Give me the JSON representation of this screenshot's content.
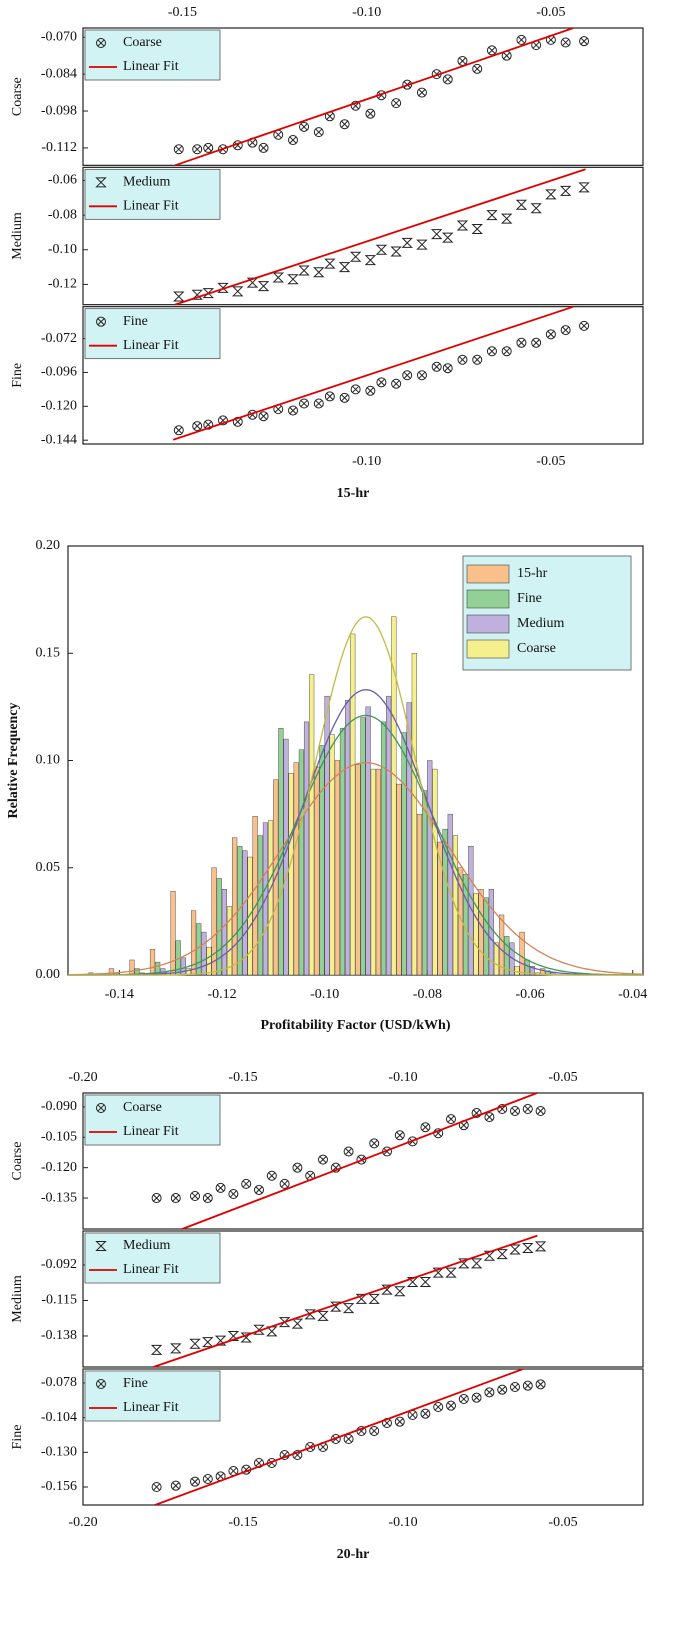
{
  "chart_data": [
    {
      "type": "scatter",
      "xlabel": "15-hr",
      "xlim": [
        -0.177,
        -0.025
      ],
      "xticks_top": [
        -0.15,
        {
          "value": -0.1,
          "label": "-0.10"
        },
        -0.05
      ],
      "xticks_bottom": [
        {
          "value": -0.1,
          "label": "-0.10"
        },
        -0.05
      ],
      "panels": [
        {
          "ylabel": "Coarse",
          "ylim": [
            -0.1186,
            -0.0665
          ],
          "yticks": [
            {
              "value": -0.07,
              "label": "-0.070"
            },
            -0.084,
            -0.098,
            -0.112
          ],
          "series": [
            {
              "name": "Coarse",
              "marker": "circle-x",
              "color": "#222222",
              "x": [
                -0.151,
                -0.146,
                -0.143,
                -0.139,
                -0.135,
                -0.131,
                -0.128,
                -0.124,
                -0.12,
                -0.117,
                -0.113,
                -0.11,
                -0.106,
                -0.103,
                -0.099,
                -0.096,
                -0.092,
                -0.089,
                -0.085,
                -0.081,
                -0.078,
                -0.074,
                -0.07,
                -0.066,
                -0.062,
                -0.058,
                -0.054,
                -0.05,
                -0.046,
                -0.041
              ],
              "values": [
                -0.1125,
                -0.1125,
                -0.112,
                -0.1125,
                -0.111,
                -0.11,
                -0.112,
                -0.107,
                -0.109,
                -0.104,
                -0.106,
                -0.1,
                -0.103,
                -0.096,
                -0.099,
                -0.092,
                -0.095,
                -0.088,
                -0.091,
                -0.084,
                -0.086,
                -0.079,
                -0.082,
                -0.075,
                -0.077,
                -0.071,
                -0.073,
                -0.071,
                -0.072,
                -0.0715
              ]
            },
            {
              "name": "Linear Fit",
              "color": "#e00000",
              "x": [
                -0.152,
                -0.0439
              ],
              "values": [
                -0.1186,
                -0.0665
              ]
            }
          ]
        },
        {
          "ylabel": "Medium",
          "ylim": [
            -0.1317,
            -0.0524
          ],
          "yticks": [
            -0.06,
            -0.08,
            {
              "value": -0.1,
              "label": "-0.10"
            },
            -0.12
          ],
          "series": [
            {
              "name": "Medium",
              "marker": "bowtie",
              "color": "#222222",
              "x": [
                -0.151,
                -0.146,
                -0.143,
                -0.139,
                -0.135,
                -0.131,
                -0.128,
                -0.124,
                -0.12,
                -0.117,
                -0.113,
                -0.11,
                -0.106,
                -0.103,
                -0.099,
                -0.096,
                -0.092,
                -0.089,
                -0.085,
                -0.081,
                -0.078,
                -0.074,
                -0.07,
                -0.066,
                -0.062,
                -0.058,
                -0.054,
                -0.05,
                -0.046,
                -0.041
              ],
              "values": [
                -0.127,
                -0.126,
                -0.125,
                -0.122,
                -0.124,
                -0.119,
                -0.121,
                -0.116,
                -0.117,
                -0.112,
                -0.113,
                -0.108,
                -0.11,
                -0.104,
                -0.106,
                -0.1,
                -0.101,
                -0.096,
                -0.097,
                -0.091,
                -0.093,
                -0.086,
                -0.088,
                -0.08,
                -0.082,
                -0.074,
                -0.076,
                -0.068,
                -0.066,
                -0.064
              ]
            },
            {
              "name": "Linear Fit",
              "color": "#e00000",
              "x": [
                -0.152,
                -0.0406
              ],
              "values": [
                -0.1317,
                -0.0535
              ]
            }
          ]
        },
        {
          "ylabel": "Fine",
          "ylim": [
            -0.1467,
            -0.0494
          ],
          "yticks": [
            -0.072,
            -0.096,
            {
              "value": -0.12,
              "label": "-0.120"
            },
            -0.144
          ],
          "series": [
            {
              "name": "Fine",
              "marker": "circle-x",
              "color": "#222222",
              "x": [
                -0.151,
                -0.146,
                -0.143,
                -0.139,
                -0.135,
                -0.131,
                -0.128,
                -0.124,
                -0.12,
                -0.117,
                -0.113,
                -0.11,
                -0.106,
                -0.103,
                -0.099,
                -0.096,
                -0.092,
                -0.089,
                -0.085,
                -0.081,
                -0.078,
                -0.074,
                -0.07,
                -0.066,
                -0.062,
                -0.058,
                -0.054,
                -0.05,
                -0.046,
                -0.041
              ],
              "values": [
                -0.137,
                -0.134,
                -0.133,
                -0.13,
                -0.131,
                -0.126,
                -0.127,
                -0.122,
                -0.123,
                -0.118,
                -0.118,
                -0.113,
                -0.114,
                -0.108,
                -0.109,
                -0.103,
                -0.104,
                -0.098,
                -0.098,
                -0.092,
                -0.093,
                -0.087,
                -0.087,
                -0.081,
                -0.081,
                -0.075,
                -0.075,
                -0.069,
                -0.066,
                -0.063
              ]
            },
            {
              "name": "Linear Fit",
              "color": "#e00000",
              "x": [
                -0.1525,
                -0.0439
              ],
              "values": [
                -0.1437,
                -0.0494
              ]
            }
          ]
        }
      ]
    },
    {
      "type": "histogram",
      "xlabel": "Profitability Factor (USD/kWh)",
      "ylabel": "Relative Frequency",
      "xlim": [
        -0.15,
        -0.038
      ],
      "ylim": [
        0,
        0.2
      ],
      "xticks": [
        -0.14,
        -0.12,
        {
          "value": -0.1,
          "label": "-0.10"
        },
        -0.08,
        -0.06,
        -0.04
      ],
      "yticks": [
        {
          "value": 0,
          "label": "0.00"
        },
        0.05,
        {
          "value": 0.1,
          "label": "0.10"
        },
        0.15,
        {
          "value": 0.2,
          "label": "0.20"
        }
      ],
      "legend": "top-right",
      "bins": [
        -0.146,
        -0.142,
        -0.138,
        -0.134,
        -0.13,
        -0.126,
        -0.122,
        -0.118,
        -0.114,
        -0.11,
        -0.106,
        -0.102,
        -0.098,
        -0.094,
        -0.09,
        -0.086,
        -0.082,
        -0.078,
        -0.074,
        -0.07,
        -0.066,
        -0.062,
        -0.058,
        -0.054
      ],
      "series": [
        {
          "name": "15-hr",
          "color": "#f9c08c",
          "fit_color": "#d4835a",
          "fit": {
            "peak": 0.099,
            "mean": -0.092,
            "sd": 0.0161
          },
          "values": [
            0.001,
            0.003,
            0.007,
            0.012,
            0.039,
            0.03,
            0.05,
            0.064,
            0.074,
            0.091,
            0.099,
            0.097,
            0.1,
            0.098,
            0.096,
            0.089,
            0.075,
            0.062,
            0.05,
            0.04,
            0.028,
            0.02,
            0.003
          ]
        },
        {
          "name": "Fine",
          "color": "#92d095",
          "fit_color": "#3f9558",
          "fit": {
            "peak": 0.121,
            "mean": -0.092,
            "sd": 0.0132
          },
          "values": [
            0,
            0.001,
            0.003,
            0.006,
            0.016,
            0.024,
            0.045,
            0.06,
            0.065,
            0.115,
            0.105,
            0.107,
            0.115,
            0.12,
            0.118,
            0.113,
            0.086,
            0.068,
            0.047,
            0.036,
            0.018,
            0.007,
            0.002
          ]
        },
        {
          "name": "Medium",
          "color": "#bfb0dd",
          "fit_color": "#6a5ea8",
          "fit": {
            "peak": 0.133,
            "mean": -0.092,
            "sd": 0.012
          },
          "values": [
            0,
            0,
            0.001,
            0.003,
            0.008,
            0.02,
            0.04,
            0.058,
            0.071,
            0.11,
            0.118,
            0.13,
            0.128,
            0.125,
            0.13,
            0.127,
            0.1,
            0.075,
            0.06,
            0.04,
            0.015,
            0.004,
            0.001
          ]
        },
        {
          "name": "Coarse",
          "color": "#f5f08d",
          "fit_color": "#c2bb45",
          "fit": {
            "peak": 0.167,
            "mean": -0.092,
            "sd": 0.0096
          },
          "values": [
            0,
            0,
            0,
            0.001,
            0.003,
            0.013,
            0.032,
            0.055,
            0.072,
            0.094,
            0.14,
            0.112,
            0.159,
            0.096,
            0.167,
            0.15,
            0.096,
            0.065,
            0.038,
            0.015,
            0.004,
            0.001,
            0
          ]
        }
      ]
    },
    {
      "type": "scatter",
      "xlabel": "20-hr",
      "xlim": [
        -0.2,
        -0.025
      ],
      "xticks_top": [
        {
          "value": -0.2,
          "label": "-0.20"
        },
        -0.15,
        {
          "value": -0.1,
          "label": "-0.10"
        },
        -0.05
      ],
      "xticks_bottom": [
        {
          "value": -0.2,
          "label": "-0.20"
        },
        -0.15,
        {
          "value": -0.1,
          "label": "-0.10"
        },
        -0.05
      ],
      "panels": [
        {
          "ylabel": "Coarse",
          "ylim": [
            -0.1503,
            -0.0831
          ],
          "yticks": [
            {
              "value": -0.09,
              "label": "-0.090"
            },
            -0.105,
            {
              "value": -0.12,
              "label": "-0.120"
            },
            -0.135
          ],
          "series": [
            {
              "name": "Coarse",
              "marker": "circle-x",
              "color": "#222222",
              "x": [
                -0.177,
                -0.171,
                -0.165,
                -0.161,
                -0.157,
                -0.153,
                -0.149,
                -0.145,
                -0.141,
                -0.137,
                -0.133,
                -0.129,
                -0.125,
                -0.121,
                -0.117,
                -0.113,
                -0.109,
                -0.105,
                -0.101,
                -0.097,
                -0.093,
                -0.089,
                -0.085,
                -0.081,
                -0.077,
                -0.073,
                -0.069,
                -0.065,
                -0.061,
                -0.057
              ],
              "values": [
                -0.135,
                -0.135,
                -0.134,
                -0.135,
                -0.13,
                -0.133,
                -0.128,
                -0.131,
                -0.124,
                -0.128,
                -0.12,
                -0.124,
                -0.116,
                -0.12,
                -0.112,
                -0.116,
                -0.108,
                -0.112,
                -0.104,
                -0.107,
                -0.1,
                -0.103,
                -0.096,
                -0.099,
                -0.093,
                -0.095,
                -0.091,
                -0.092,
                -0.091,
                -0.092
              ]
            },
            {
              "name": "Linear Fit",
              "color": "#e00000",
              "x": [
                -0.169,
                -0.0581
              ],
              "values": [
                -0.1503,
                -0.0831
              ]
            }
          ]
        },
        {
          "ylabel": "Medium",
          "ylim": [
            -0.1581,
            -0.07
          ],
          "yticks": [
            -0.092,
            -0.115,
            -0.138
          ],
          "series": [
            {
              "name": "Medium",
              "marker": "bowtie",
              "color": "#222222",
              "x": [
                -0.177,
                -0.171,
                -0.165,
                -0.161,
                -0.157,
                -0.153,
                -0.149,
                -0.145,
                -0.141,
                -0.137,
                -0.133,
                -0.129,
                -0.125,
                -0.121,
                -0.117,
                -0.113,
                -0.109,
                -0.105,
                -0.101,
                -0.097,
                -0.093,
                -0.089,
                -0.085,
                -0.081,
                -0.077,
                -0.073,
                -0.069,
                -0.065,
                -0.061,
                -0.057
              ],
              "values": [
                -0.147,
                -0.146,
                -0.143,
                -0.142,
                -0.141,
                -0.138,
                -0.139,
                -0.134,
                -0.135,
                -0.129,
                -0.13,
                -0.124,
                -0.125,
                -0.119,
                -0.12,
                -0.114,
                -0.114,
                -0.108,
                -0.109,
                -0.103,
                -0.103,
                -0.097,
                -0.097,
                -0.091,
                -0.091,
                -0.086,
                -0.085,
                -0.082,
                -0.081,
                -0.08
              ]
            },
            {
              "name": "Linear Fit",
              "color": "#e00000",
              "x": [
                -0.178,
                -0.058
              ],
              "values": [
                -0.1581,
                -0.073
              ]
            }
          ]
        },
        {
          "ylabel": "Fine",
          "ylim": [
            -0.1695,
            -0.0675
          ],
          "yticks": [
            -0.078,
            -0.104,
            {
              "value": -0.13,
              "label": "-0.130"
            },
            -0.156
          ],
          "series": [
            {
              "name": "Fine",
              "marker": "circle-x",
              "color": "#222222",
              "x": [
                -0.177,
                -0.171,
                -0.165,
                -0.161,
                -0.157,
                -0.153,
                -0.149,
                -0.145,
                -0.141,
                -0.137,
                -0.133,
                -0.129,
                -0.125,
                -0.121,
                -0.117,
                -0.113,
                -0.109,
                -0.105,
                -0.101,
                -0.097,
                -0.093,
                -0.089,
                -0.085,
                -0.081,
                -0.077,
                -0.073,
                -0.069,
                -0.065,
                -0.061,
                -0.057
              ],
              "values": [
                -0.156,
                -0.155,
                -0.152,
                -0.15,
                -0.148,
                -0.144,
                -0.143,
                -0.138,
                -0.138,
                -0.132,
                -0.132,
                -0.126,
                -0.126,
                -0.12,
                -0.12,
                -0.114,
                -0.114,
                -0.108,
                -0.107,
                -0.102,
                -0.101,
                -0.096,
                -0.095,
                -0.09,
                -0.089,
                -0.085,
                -0.083,
                -0.081,
                -0.08,
                -0.079
              ]
            },
            {
              "name": "Linear Fit",
              "color": "#e00000",
              "x": [
                -0.1775,
                -0.0625
              ],
              "values": [
                -0.1695,
                -0.0675
              ]
            }
          ]
        }
      ]
    }
  ]
}
